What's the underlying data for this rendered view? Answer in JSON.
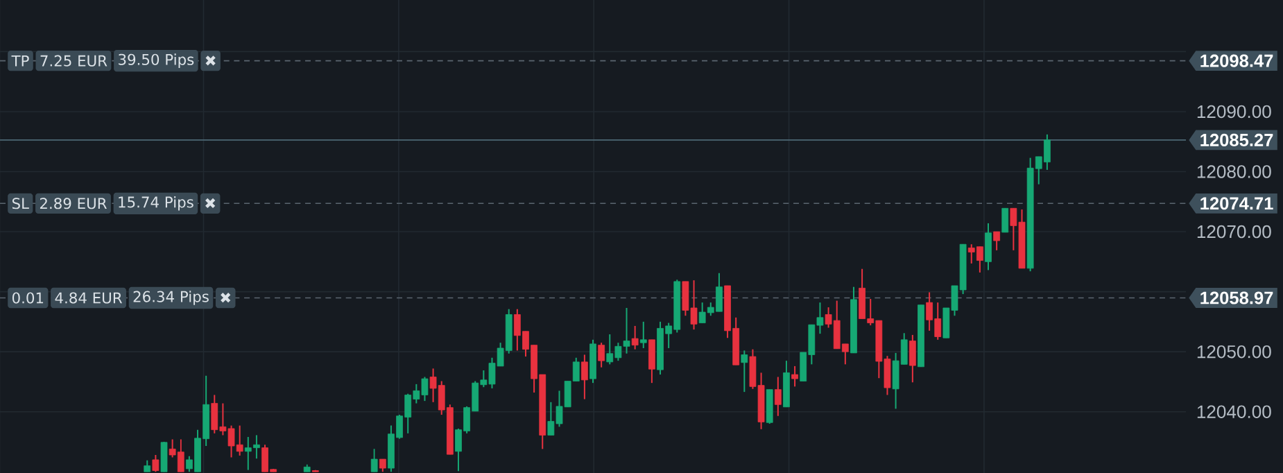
{
  "chart_data": {
    "type": "candlestick",
    "categories": [
      null,
      null,
      null,
      null,
      null,
      null,
      null,
      null,
      null,
      null,
      null,
      null,
      null,
      null,
      null,
      null,
      null,
      null,
      null,
      null,
      null,
      null,
      null,
      null,
      null,
      null,
      null,
      null,
      null,
      null,
      null,
      null,
      null,
      null,
      null,
      null,
      null,
      null,
      null,
      null,
      null,
      null,
      null,
      null,
      null,
      null,
      null,
      null,
      null,
      null,
      null,
      null,
      null,
      null,
      null,
      null,
      null,
      null,
      null,
      null,
      null,
      null,
      null,
      null,
      null,
      null,
      null,
      null,
      null,
      null,
      null,
      null,
      null,
      null,
      null,
      null,
      null,
      null,
      null,
      null,
      null,
      null,
      null,
      null,
      null,
      null,
      null,
      null,
      null,
      null,
      null,
      null,
      null,
      null,
      null,
      null,
      null,
      null,
      null,
      null,
      null,
      null,
      null,
      null,
      null,
      null,
      null,
      null,
      null,
      null,
      null,
      null,
      null,
      null,
      null,
      null,
      null,
      null,
      null,
      null,
      null,
      null,
      null,
      null,
      null,
      null,
      null,
      null,
      null,
      null,
      null,
      null,
      null,
      null,
      null,
      null,
      null,
      null,
      null,
      null,
      null
    ],
    "ohlc": [
      null,
      null,
      null,
      null,
      null,
      null,
      null,
      null,
      null,
      null,
      null,
      null,
      null,
      null,
      null,
      null,
      null,
      [
        12030,
        12031.9,
        12030,
        12031
      ],
      [
        12032,
        12032.8,
        12030,
        12030.2
      ],
      [
        12030,
        12035,
        12030,
        12034.9
      ],
      [
        12033.8,
        12035.4,
        12032.4,
        12032.8
      ],
      [
        12033.3,
        12035.4,
        12030,
        12030
      ],
      [
        12030.5,
        12032.6,
        12030,
        12032
      ],
      [
        12030,
        12037,
        12030,
        12035.6
      ],
      [
        12035.5,
        12046,
        12034.3,
        12041.2
      ],
      [
        12041.4,
        12042.8,
        12036.4,
        12037
      ],
      [
        12037.5,
        12041.4,
        12036.1,
        12036.8
      ],
      [
        12037.2,
        12037.7,
        12032.4,
        12034.3
      ],
      [
        12034.5,
        12037.7,
        12032.7,
        12033.4
      ],
      [
        12033.4,
        12035.8,
        12030.3,
        12034
      ],
      [
        12034,
        12036.1,
        12032.2,
        12034.5
      ],
      [
        12034,
        12034.5,
        12030,
        12030
      ],
      [
        12030.4,
        12030.5,
        12030,
        12030
      ],
      null,
      null,
      null,
      [
        12030,
        12031.2,
        12030,
        12030.8
      ],
      [
        12030.2,
        12030.3,
        12030,
        12030
      ],
      null,
      null,
      null,
      null,
      null,
      null,
      [
        12030,
        12033.8,
        12030,
        12032.1
      ],
      [
        12032.1,
        12032.1,
        12030,
        12030.6
      ],
      [
        12030.6,
        12037.7,
        12030,
        12036.3
      ],
      [
        12035.7,
        12039.5,
        12035.5,
        12039.3
      ],
      [
        12039.1,
        12043,
        12036.4,
        12042.8
      ],
      [
        12042.1,
        12044.6,
        12041.4,
        12043.5
      ],
      [
        12042.8,
        12045.8,
        12041.8,
        12045.5
      ],
      [
        12045.8,
        12047.2,
        12041.6,
        12043.9
      ],
      [
        12044.4,
        12045.1,
        12039.5,
        12040.3
      ],
      [
        12040.7,
        12041.2,
        12032.9,
        12032.9
      ],
      [
        12033.4,
        12037.2,
        12030.1,
        12037
      ],
      [
        12036.8,
        12040.9,
        12036.4,
        12040.7
      ],
      [
        12040.1,
        12045.1,
        12040.1,
        12044.8
      ],
      [
        12044.5,
        12046.9,
        12044.1,
        12045.3
      ],
      [
        12044.6,
        12049,
        12043.9,
        12048.1
      ],
      [
        12047.6,
        12051.5,
        12047.6,
        12050.6
      ],
      [
        12050.2,
        12057.1,
        12049.7,
        12056.2
      ],
      [
        12056.2,
        12057.1,
        12050.2,
        12052.7
      ],
      [
        12053.4,
        12053.4,
        12049.2,
        12050.4
      ],
      [
        12051.1,
        12051.1,
        12043.2,
        12045.5
      ],
      [
        12046.2,
        12046.2,
        12033.8,
        12036.1
      ],
      [
        12036.1,
        12041.6,
        12036.1,
        12038.4
      ],
      [
        12038,
        12043.5,
        12037.5,
        12040.9
      ],
      [
        12040.8,
        12045.1,
        12040.8,
        12045.1
      ],
      [
        12045.1,
        12049,
        12045.1,
        12048.3
      ],
      [
        12048.3,
        12049.5,
        12042.1,
        12045.3
      ],
      [
        12045.5,
        12052,
        12044.8,
        12051.3
      ],
      [
        12051.1,
        12051.5,
        12047.4,
        12048.5
      ],
      [
        12048.3,
        12052.9,
        12047.9,
        12049.7
      ],
      [
        12049,
        12051.5,
        12048.5,
        12050.9
      ],
      [
        12050.9,
        12057.3,
        12049.7,
        12051.8
      ],
      [
        12052.2,
        12054.3,
        12050.4,
        12051.1
      ],
      [
        12051.5,
        12055,
        12050.6,
        12052
      ],
      [
        12052,
        12052,
        12044.8,
        12047.1
      ],
      [
        12047,
        12055,
        12046.2,
        12053.9
      ],
      [
        12053,
        12054.8,
        12050.6,
        12054.3
      ],
      [
        12053.7,
        12062,
        12053.2,
        12061.7
      ],
      [
        12061.7,
        12061.7,
        12056,
        12056.9
      ],
      [
        12057.3,
        12061.9,
        12053.7,
        12054.6
      ],
      [
        12054.8,
        12058.2,
        12054.8,
        12056.6
      ],
      [
        12056.5,
        12058.2,
        12056,
        12057.4
      ],
      [
        12056.7,
        12063.1,
        12056.7,
        12060.8
      ],
      [
        12061,
        12061,
        12052.3,
        12053.5
      ],
      [
        12053.9,
        12055.7,
        12047.8,
        12047.8
      ],
      [
        12048.2,
        12050.2,
        12043.3,
        12049.5
      ],
      [
        12049.2,
        12050.4,
        12043.8,
        12044.2
      ],
      [
        12044.4,
        12046.5,
        12037.1,
        12038.3
      ],
      [
        12038.2,
        12043.7,
        12038,
        12043.7
      ],
      [
        12043.7,
        12045.8,
        12039.3,
        12041.2
      ],
      [
        12040.8,
        12048.5,
        12040.8,
        12046.5
      ],
      [
        12046.2,
        12047.6,
        12044.2,
        12045.5
      ],
      [
        12045.1,
        12049.9,
        12045.1,
        12049.9
      ],
      [
        12049.5,
        12054.5,
        12047.9,
        12054.5
      ],
      [
        12054.4,
        12058.2,
        12053,
        12055.7
      ],
      [
        12056.2,
        12057.4,
        12054,
        12054.6
      ],
      [
        12055.2,
        12058.5,
        12050.5,
        12050.5
      ],
      [
        12051.3,
        12051.3,
        12047.9,
        12050
      ],
      [
        12049.8,
        12060.8,
        12049.8,
        12058.7
      ],
      [
        12060.6,
        12063.8,
        12055.5,
        12055.5
      ],
      [
        12055.5,
        12058.8,
        12054.4,
        12054.8
      ],
      [
        12055.2,
        12055.2,
        12045.6,
        12048.4
      ],
      [
        12048.8,
        12049.3,
        12042.8,
        12044
      ],
      [
        12043.8,
        12049.8,
        12040.5,
        12048.5
      ],
      [
        12047.9,
        12053.1,
        12047.9,
        12052
      ],
      [
        12051.8,
        12052.8,
        12044.9,
        12047.7
      ],
      [
        12047.5,
        12057.8,
        12047.5,
        12057.8
      ],
      [
        12058.2,
        12059.9,
        12053.5,
        12055.3
      ],
      [
        12055.5,
        12058.2,
        12052,
        12052.5
      ],
      [
        12052.3,
        12057.3,
        12052.3,
        12057.3
      ],
      [
        12056.9,
        12061,
        12056,
        12061
      ],
      [
        12060.3,
        12067.9,
        12059.6,
        12067.9
      ],
      [
        12067.3,
        12067.9,
        12064.7,
        12066.6
      ],
      [
        12067.5,
        12067.5,
        12063.2,
        12065.2
      ],
      [
        12065,
        12071.4,
        12063.6,
        12069.8
      ],
      [
        12070,
        12070,
        12066.9,
        12068.5
      ],
      [
        12069.9,
        12073.9,
        12069.9,
        12073.9
      ],
      [
        12073.9,
        12073.9,
        12066.9,
        12071
      ],
      [
        12071.6,
        12073.7,
        12063.9,
        12063.9
      ],
      [
        12063.9,
        12082.3,
        12063.4,
        12080.6
      ],
      [
        12080.5,
        12082.5,
        12077.9,
        12082.5
      ],
      [
        12081.6,
        12086.2,
        12080.3,
        12085.3
      ],
      null,
      null,
      null,
      null,
      null,
      null,
      null,
      null,
      null,
      null,
      null,
      null,
      null,
      null,
      null,
      null
    ],
    "colors": [
      null,
      null,
      null,
      null,
      null,
      null,
      null,
      null,
      null,
      null,
      null,
      null,
      null,
      null,
      null,
      null,
      null,
      "#16a874",
      "#e8323f",
      "#16a874",
      "#e8323f",
      "#e8323f",
      "#16a874",
      "#16a874",
      "#16a874",
      "#e8323f",
      "#e8323f",
      "#e8323f",
      "#e8323f",
      "#16a874",
      "#16a874",
      "#e8323f",
      "#e8323f",
      null,
      null,
      null,
      "#16a874",
      "#e8323f",
      null,
      null,
      null,
      null,
      null,
      null,
      "#16a874",
      "#e8323f",
      "#16a874",
      "#16a874",
      "#16a874",
      "#16a874",
      "#16a874",
      "#e8323f",
      "#e8323f",
      "#e8323f",
      "#16a874",
      "#16a874",
      "#16a874",
      "#16a874",
      "#16a874",
      "#16a874",
      "#16a874",
      "#e8323f",
      "#e8323f",
      "#e8323f",
      "#e8323f",
      "#16a874",
      "#16a874",
      "#16a874",
      "#16a874",
      "#e8323f",
      "#16a874",
      "#e8323f",
      "#16a874",
      "#16a874",
      "#16a874",
      "#e8323f",
      "#16a874",
      "#e8323f",
      "#16a874",
      "#16a874",
      "#16a874",
      "#e8323f",
      "#e8323f",
      "#16a874",
      "#16a874",
      "#16a874",
      "#e8323f",
      "#e8323f",
      "#16a874",
      "#e8323f",
      "#e8323f",
      "#16a874",
      "#e8323f",
      "#16a874",
      "#e8323f",
      "#16a874",
      "#16a874",
      "#16a874",
      "#e8323f",
      "#e8323f",
      "#e8323f",
      "#16a874",
      "#e8323f",
      "#e8323f",
      "#e8323f",
      "#e8323f",
      "#16a874",
      "#16a874",
      "#e8323f",
      "#16a874",
      "#e8323f",
      "#e8323f",
      "#16a874",
      "#16a874",
      "#16a874",
      "#e8323f",
      "#e8323f",
      "#16a874",
      "#e8323f",
      "#16a874",
      "#e8323f",
      "#e8323f",
      "#16a874",
      "#16a874",
      "#16a874",
      null,
      null,
      null,
      null,
      null,
      null,
      null,
      null,
      null,
      null,
      null,
      null,
      null,
      null,
      null,
      null
    ],
    "ylim": [
      12029.8,
      12108.6
    ],
    "yticks": [
      {
        "value": 12040,
        "label": "12040.00"
      },
      {
        "value": 12050,
        "label": "12050.00"
      },
      {
        "value": 12060,
        "label": null
      },
      {
        "value": 12070,
        "label": "12070.00"
      },
      {
        "value": 12080,
        "label": "12080.00"
      },
      {
        "value": 12090,
        "label": "12090.00"
      },
      {
        "value": 12100,
        "label": null
      }
    ],
    "grid": true,
    "tick_labels": "y",
    "ref_lines": [
      {
        "axis": "y",
        "value": 12098.47,
        "label": "12098.47",
        "line_style": "dashed",
        "color": "#5b6670"
      },
      {
        "axis": "y",
        "value": 12085.27,
        "label": "12085.27",
        "line_style": "solid",
        "color": "#4d6874"
      },
      {
        "axis": "y",
        "value": 12074.71,
        "label": "12074.71",
        "line_style": "dashed",
        "color": "#5b6670"
      },
      {
        "axis": "y",
        "value": 12058.97,
        "label": "12058.97",
        "line_style": "dashed",
        "color": "#5b6670"
      }
    ],
    "annotations": [
      {
        "text": "TP",
        "y": 12098.47
      },
      {
        "text": "7.25 EUR",
        "y": 12098.47
      },
      {
        "text": "39.50 Pips",
        "y": 12098.47
      },
      {
        "text": "✖",
        "y": 12098.47
      },
      {
        "text": "SL",
        "y": 12074.71
      },
      {
        "text": "2.89 EUR",
        "y": 12074.71
      },
      {
        "text": "15.74 Pips",
        "y": 12074.71
      },
      {
        "text": "✖",
        "y": 12074.71
      },
      {
        "text": "0.01",
        "y": 12058.97
      },
      {
        "text": "4.84 EUR",
        "y": 12058.97
      },
      {
        "text": "26.34 Pips",
        "y": 12058.97
      },
      {
        "text": "✖",
        "y": 12058.97
      }
    ]
  }
}
